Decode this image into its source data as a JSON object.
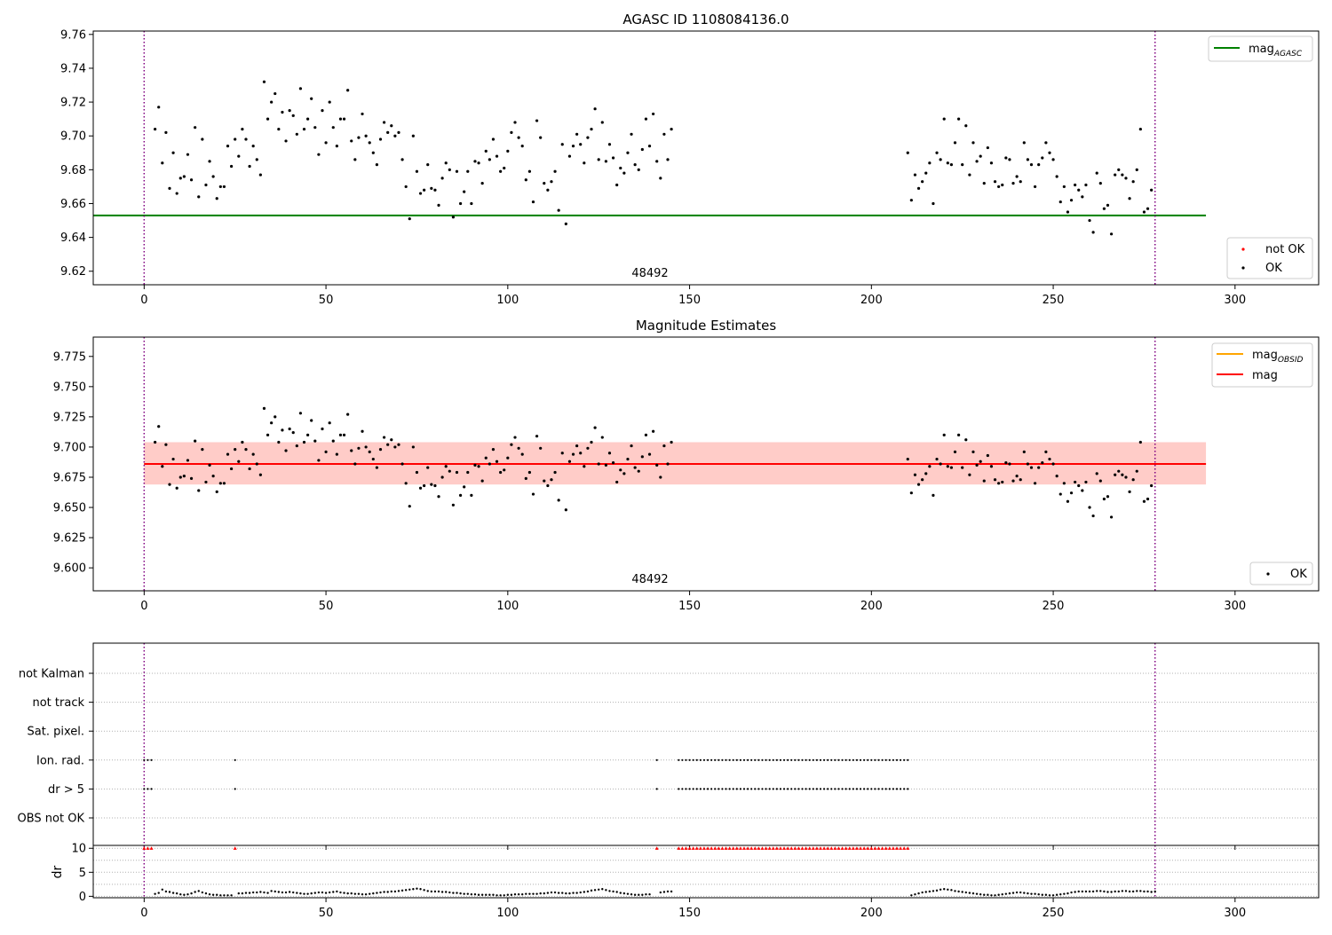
{
  "figure": {
    "top_panel": {
      "title": "AGASC ID 1108084136.0",
      "obsid_label": "48492",
      "legend_line": {
        "label": "mag",
        "sub": "AGASC"
      },
      "legend_points": [
        {
          "label": "not OK"
        },
        {
          "label": "OK"
        }
      ]
    },
    "middle_panel": {
      "title": "Magnitude Estimates",
      "obsid_label": "48492",
      "legend_lines": [
        {
          "label": "mag",
          "sub": "OBSID"
        },
        {
          "label": "mag",
          "sub": ""
        }
      ],
      "legend_points": [
        {
          "label": "OK"
        }
      ]
    },
    "flags_panel": {
      "row_labels": [
        "not Kalman",
        "not track",
        "Sat. pixel.",
        "Ion. rad.",
        "dr > 5",
        "OBS not OK"
      ]
    },
    "dr_panel": {
      "ylabel": "dr"
    }
  },
  "chart_data": [
    {
      "id": "agasc_mag",
      "type": "scatter",
      "title": "AGASC ID 1108084136.0",
      "xlim": [
        -14,
        323
      ],
      "ylim": [
        9.612,
        9.762
      ],
      "xticks": [
        0,
        50,
        100,
        150,
        200,
        250,
        300
      ],
      "yticks": [
        9.62,
        9.64,
        9.66,
        9.68,
        9.7,
        9.72,
        9.74,
        9.76
      ],
      "ytick_decimals": 2,
      "hlines": [
        {
          "name": "mag AGASC",
          "y": 9.653,
          "x0": -14,
          "x1": 292,
          "color": "#008000"
        }
      ],
      "vlines": [
        {
          "x": 0,
          "color": "#800080"
        },
        {
          "x": 278,
          "color": "#800080"
        }
      ],
      "series": [
        {
          "name": "OK",
          "color": "#000000",
          "segments": "magnitudes"
        },
        {
          "name": "not OK",
          "color": "#ff0000",
          "points": []
        }
      ],
      "annotations": [
        {
          "text": "48492",
          "x": 139
        }
      ]
    },
    {
      "id": "mag_estimates",
      "type": "scatter",
      "title": "Magnitude Estimates",
      "xlim": [
        -14,
        323
      ],
      "ylim": [
        9.581,
        9.791
      ],
      "xticks": [
        0,
        50,
        100,
        150,
        200,
        250,
        300
      ],
      "yticks": [
        9.6,
        9.625,
        9.65,
        9.675,
        9.7,
        9.725,
        9.75,
        9.775
      ],
      "ytick_decimals": 3,
      "hlines": [
        {
          "name": "mag OBSID",
          "y": 9.686,
          "x0": 0,
          "x1": 292,
          "color": "#ffa500"
        },
        {
          "name": "mag",
          "y": 9.686,
          "x0": 0,
          "x1": 292,
          "color": "#ff0000"
        }
      ],
      "bands": [
        {
          "y0": 9.669,
          "y1": 9.704,
          "x0": 0,
          "x1": 292,
          "color": "#ff69b4",
          "opacity": 0.18
        },
        {
          "y0": 9.669,
          "y1": 9.704,
          "x0": 0,
          "x1": 292,
          "color": "#ffa07a",
          "opacity": 0.35
        }
      ],
      "vlines": [
        {
          "x": 0,
          "color": "#800080"
        },
        {
          "x": 278,
          "color": "#800080"
        }
      ],
      "series": [
        {
          "name": "OK",
          "color": "#000000",
          "segments": "magnitudes"
        }
      ],
      "annotations": [
        {
          "text": "48492",
          "x": 139
        }
      ]
    },
    {
      "id": "flags",
      "type": "scatter",
      "xlim": [
        -14,
        323
      ],
      "rows": [
        "not Kalman",
        "not track",
        "Sat. pixel.",
        "Ion. rad.",
        "dr > 5",
        "OBS not OK"
      ],
      "flagged_x": [
        0,
        1,
        2,
        25,
        141,
        147,
        148,
        149,
        150,
        151,
        152,
        153,
        154,
        155,
        156,
        157,
        158,
        159,
        160,
        161,
        162,
        163,
        164,
        165,
        166,
        167,
        168,
        169,
        170,
        171,
        172,
        173,
        174,
        175,
        176,
        177,
        178,
        179,
        180,
        181,
        182,
        183,
        184,
        185,
        186,
        187,
        188,
        189,
        190,
        191,
        192,
        193,
        194,
        195,
        196,
        197,
        198,
        199,
        200,
        201,
        202,
        203,
        204,
        205,
        206,
        207,
        208,
        209,
        210
      ],
      "flagged_rows": [
        "Ion. rad.",
        "dr > 5"
      ],
      "vlines": [
        {
          "x": 0,
          "color": "#800080"
        },
        {
          "x": 278,
          "color": "#800080"
        }
      ]
    },
    {
      "id": "dr",
      "type": "scatter",
      "ylabel": "dr",
      "xlim": [
        -14,
        323
      ],
      "ylim": [
        -0.3,
        10.6
      ],
      "xticks": [
        0,
        50,
        100,
        150,
        200,
        250,
        300
      ],
      "yticks": [
        0,
        5,
        10
      ],
      "capped_value": 10,
      "capped_x_ref": "flagged_x",
      "dr_segments": [
        {
          "x_start": 3,
          "values": [
            0.5,
            0.7,
            1.4,
            1.0,
            0.9,
            0.7,
            0.6,
            0.4,
            0.3,
            0.4,
            0.6,
            0.9,
            1.1,
            0.8,
            0.6,
            0.4,
            0.3,
            0.3,
            0.2,
            0.2,
            0.2,
            0.2
          ]
        },
        {
          "x_start": 26,
          "values": [
            0.6,
            0.6,
            0.7,
            0.7,
            0.8,
            0.8,
            0.9,
            0.8,
            0.7,
            1.1,
            1.0,
            0.9,
            0.8,
            0.8,
            0.9,
            0.8,
            0.7,
            0.6,
            0.5,
            0.5,
            0.6,
            0.7,
            0.8,
            0.8,
            0.7,
            0.8,
            0.9,
            1.0,
            0.8,
            0.7,
            0.6,
            0.6,
            0.5,
            0.5,
            0.4,
            0.4,
            0.5,
            0.6,
            0.7,
            0.8,
            0.9,
            0.9,
            1.0,
            1.0,
            1.1,
            1.2,
            1.3,
            1.4,
            1.5,
            1.6,
            1.5,
            1.3,
            1.1,
            1.0,
            1.0,
            1.0,
            0.9,
            0.9,
            0.8,
            0.7,
            0.7,
            0.6,
            0.5,
            0.5,
            0.4,
            0.4,
            0.3,
            0.3,
            0.3,
            0.3,
            0.3,
            0.2,
            0.2,
            0.2,
            0.3,
            0.3,
            0.4,
            0.4,
            0.4,
            0.5,
            0.5,
            0.5,
            0.5,
            0.6,
            0.6,
            0.7,
            0.8,
            0.8,
            0.7,
            0.7,
            0.6,
            0.6,
            0.7,
            0.7,
            0.8,
            0.9,
            1.0,
            1.2,
            1.3,
            1.4,
            1.5,
            1.3,
            1.1,
            1.0,
            0.9,
            0.7,
            0.6,
            0.5,
            0.4,
            0.3,
            0.3,
            0.3,
            0.4,
            0.4
          ]
        },
        {
          "x_start": 142,
          "values": [
            0.8,
            0.9,
            1.0,
            1.0
          ]
        },
        {
          "x_start": 211,
          "values": [
            0.2,
            0.4,
            0.6,
            0.8,
            0.9,
            1.0,
            1.1,
            1.2,
            1.4,
            1.5,
            1.4,
            1.3,
            1.1,
            1.0,
            0.9,
            0.8,
            0.7,
            0.6,
            0.5,
            0.4,
            0.3,
            0.3,
            0.2,
            0.2,
            0.3,
            0.4,
            0.5,
            0.6,
            0.7,
            0.8,
            0.8,
            0.7,
            0.6,
            0.5,
            0.5,
            0.4,
            0.3,
            0.3,
            0.2,
            0.2,
            0.3,
            0.4,
            0.5,
            0.6,
            0.8,
            0.9,
            1.0,
            1.0,
            1.0,
            1.0,
            1.0,
            1.1,
            1.1,
            1.0,
            0.9,
            0.9,
            1.0,
            1.0,
            1.1,
            1.1,
            1.0,
            1.0,
            1.1,
            1.1,
            1.0,
            1.0,
            0.9,
            1.0
          ]
        }
      ],
      "vlines": [
        {
          "x": 0,
          "color": "#800080"
        },
        {
          "x": 278,
          "color": "#800080"
        }
      ]
    }
  ],
  "magnitudes": [
    {
      "x_start": 3,
      "values": [
        9.704,
        9.717,
        9.684,
        9.702,
        9.669,
        9.69,
        9.666,
        9.675,
        9.676,
        9.689,
        9.674,
        9.705,
        9.664,
        9.698,
        9.671,
        9.685,
        9.676,
        9.663,
        9.67,
        9.67,
        9.694,
        9.682,
        9.698,
        9.688,
        9.704,
        9.698,
        9.682,
        9.694,
        9.686,
        9.677,
        9.732,
        9.71,
        9.72,
        9.725,
        9.704,
        9.714,
        9.697,
        9.715,
        9.712,
        9.701,
        9.728,
        9.704,
        9.71,
        9.722,
        9.705,
        9.689,
        9.715,
        9.696,
        9.72,
        9.705,
        9.694,
        9.71,
        9.71,
        9.727,
        9.697,
        9.686,
        9.699,
        9.713,
        9.7,
        9.696,
        9.69,
        9.683,
        9.698,
        9.708,
        9.702,
        9.706,
        9.7,
        9.702,
        9.686,
        9.67,
        9.651,
        9.7,
        9.679,
        9.666,
        9.668,
        9.683,
        9.669,
        9.668,
        9.659,
        9.675,
        9.684,
        9.68,
        9.652,
        9.679,
        9.66,
        9.667,
        9.679,
        9.66,
        9.685,
        9.684,
        9.672,
        9.691,
        9.686,
        9.698,
        9.688,
        9.679,
        9.681,
        9.691,
        9.702,
        9.708,
        9.699,
        9.694,
        9.674,
        9.679,
        9.661,
        9.709,
        9.699,
        9.672,
        9.668,
        9.673,
        9.679,
        9.656,
        9.695,
        9.648,
        9.688,
        9.694,
        9.701,
        9.695,
        9.684,
        9.699,
        9.704,
        9.716,
        9.686,
        9.708,
        9.685,
        9.695,
        9.687,
        9.671,
        9.681,
        9.678,
        9.69,
        9.701,
        9.683,
        9.68,
        9.692,
        9.71,
        9.694,
        9.713,
        9.685,
        9.675,
        9.701,
        9.686,
        9.704
      ]
    },
    {
      "x_start": 210,
      "values": [
        9.69,
        9.662,
        9.677,
        9.669,
        9.673,
        9.678,
        9.684,
        9.66,
        9.69,
        9.686,
        9.71,
        9.684,
        9.683,
        9.696,
        9.71,
        9.683,
        9.706,
        9.677,
        9.696,
        9.685,
        9.688,
        9.672,
        9.693,
        9.684,
        9.673,
        9.67,
        9.671,
        9.687,
        9.686,
        9.672,
        9.676,
        9.673,
        9.696,
        9.686,
        9.683,
        9.67,
        9.683,
        9.687,
        9.696,
        9.69,
        9.686,
        9.676,
        9.661,
        9.67,
        9.655,
        9.662,
        9.671,
        9.668,
        9.664,
        9.671,
        9.65,
        9.643,
        9.678,
        9.672,
        9.657,
        9.659,
        9.642,
        9.677,
        9.68,
        9.677,
        9.675,
        9.663,
        9.673,
        9.68,
        9.704,
        9.655,
        9.657,
        9.668
      ]
    }
  ]
}
